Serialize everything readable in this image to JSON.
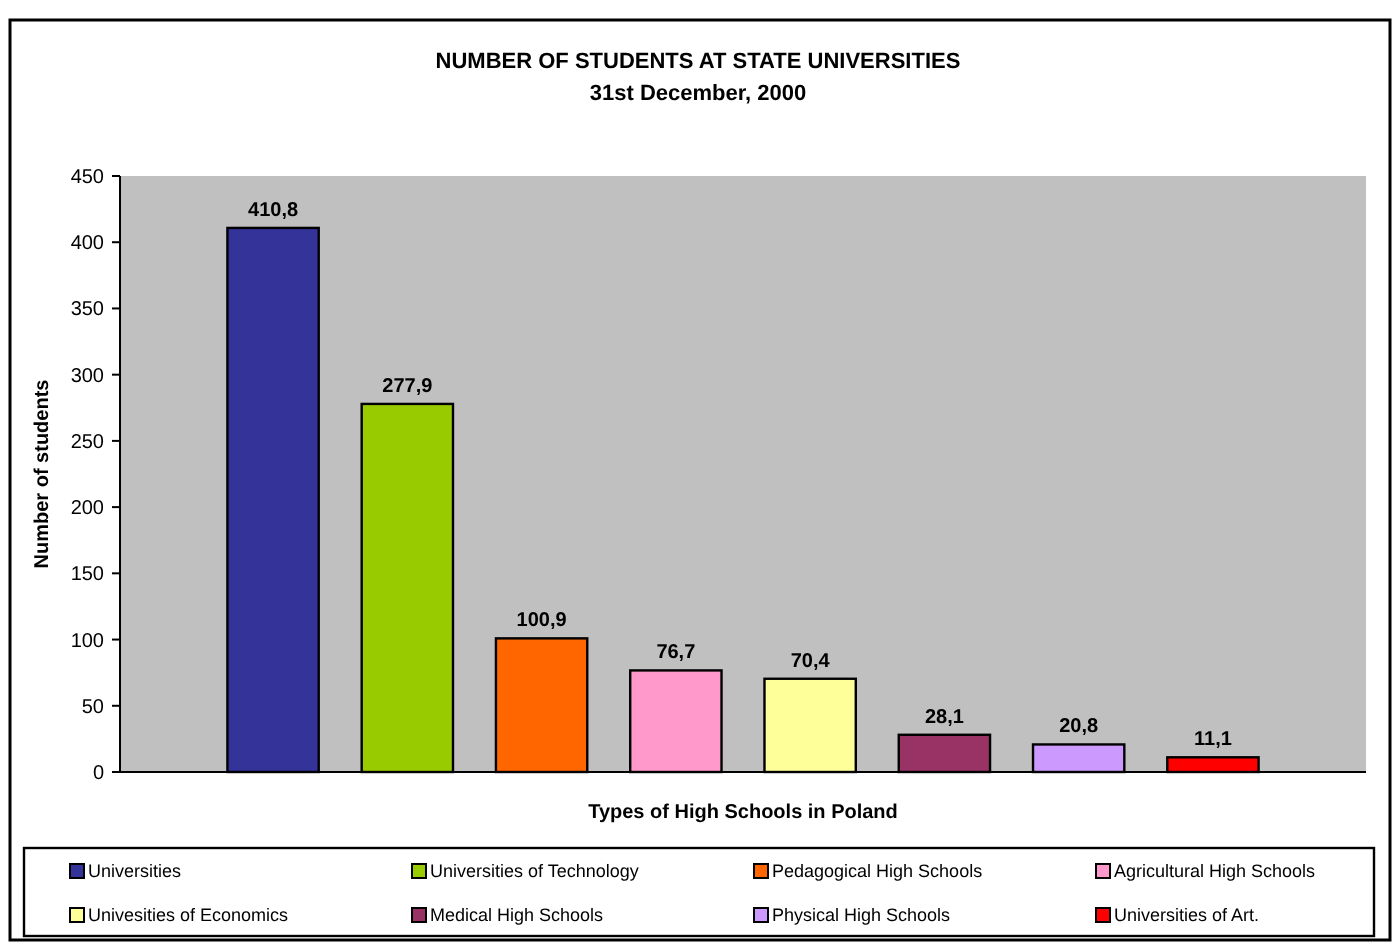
{
  "chart_data": {
    "type": "bar",
    "title": "NUMBER OF STUDENTS AT STATE UNIVERSITIES",
    "subtitle": "31st  December, 2000",
    "xlabel": "Types of High Schools in Poland",
    "ylabel": "Number of students",
    "categories": [
      null,
      null,
      null,
      null,
      null,
      null,
      null,
      null
    ],
    "series": [
      {
        "name": "Universities",
        "color": "#333399",
        "values": [
          410.8,
          null,
          null,
          null,
          null,
          null,
          null,
          null
        ],
        "value_labels": [
          "410,8",
          null,
          null,
          null,
          null,
          null,
          null,
          null
        ]
      },
      {
        "name": "Universities of Technology",
        "color": "#99cc00",
        "values": [
          null,
          277.9,
          null,
          null,
          null,
          null,
          null,
          null
        ],
        "value_labels": [
          null,
          "277,9",
          null,
          null,
          null,
          null,
          null,
          null
        ]
      },
      {
        "name": "Pedagogical High Schools",
        "color": "#ff6600",
        "values": [
          null,
          null,
          100.9,
          null,
          null,
          null,
          null,
          null
        ],
        "value_labels": [
          null,
          null,
          "100,9",
          null,
          null,
          null,
          null,
          null
        ]
      },
      {
        "name": "Agricultural High Schools",
        "color": "#ff99cc",
        "values": [
          null,
          null,
          null,
          76.7,
          null,
          null,
          null,
          null
        ],
        "value_labels": [
          null,
          null,
          null,
          "76,7",
          null,
          null,
          null,
          null
        ]
      },
      {
        "name": "Univesities of Economics",
        "color": "#ffff99",
        "values": [
          null,
          null,
          null,
          null,
          70.4,
          null,
          null,
          null
        ],
        "value_labels": [
          null,
          null,
          null,
          null,
          "70,4",
          null,
          null,
          null
        ]
      },
      {
        "name": "Medical High Schools",
        "color": "#993366",
        "values": [
          null,
          null,
          null,
          null,
          null,
          28.1,
          null,
          null
        ],
        "value_labels": [
          null,
          null,
          null,
          null,
          null,
          "28,1",
          null,
          null
        ]
      },
      {
        "name": "Physical High Schools",
        "color": "#cc99ff",
        "values": [
          null,
          null,
          null,
          null,
          null,
          null,
          20.8,
          null
        ],
        "value_labels": [
          null,
          null,
          null,
          null,
          null,
          null,
          "20,8",
          null
        ]
      },
      {
        "name": "Universities of Art.",
        "color": "#ff0000",
        "values": [
          null,
          null,
          null,
          null,
          null,
          null,
          null,
          11.1
        ],
        "value_labels": [
          null,
          null,
          null,
          null,
          null,
          null,
          null,
          "11,1"
        ]
      }
    ],
    "ylim": [
      0,
      450
    ],
    "yticks": [
      0,
      50,
      100,
      150,
      200,
      250,
      300,
      350,
      400,
      450
    ],
    "grid": false,
    "legend": "bottom"
  }
}
